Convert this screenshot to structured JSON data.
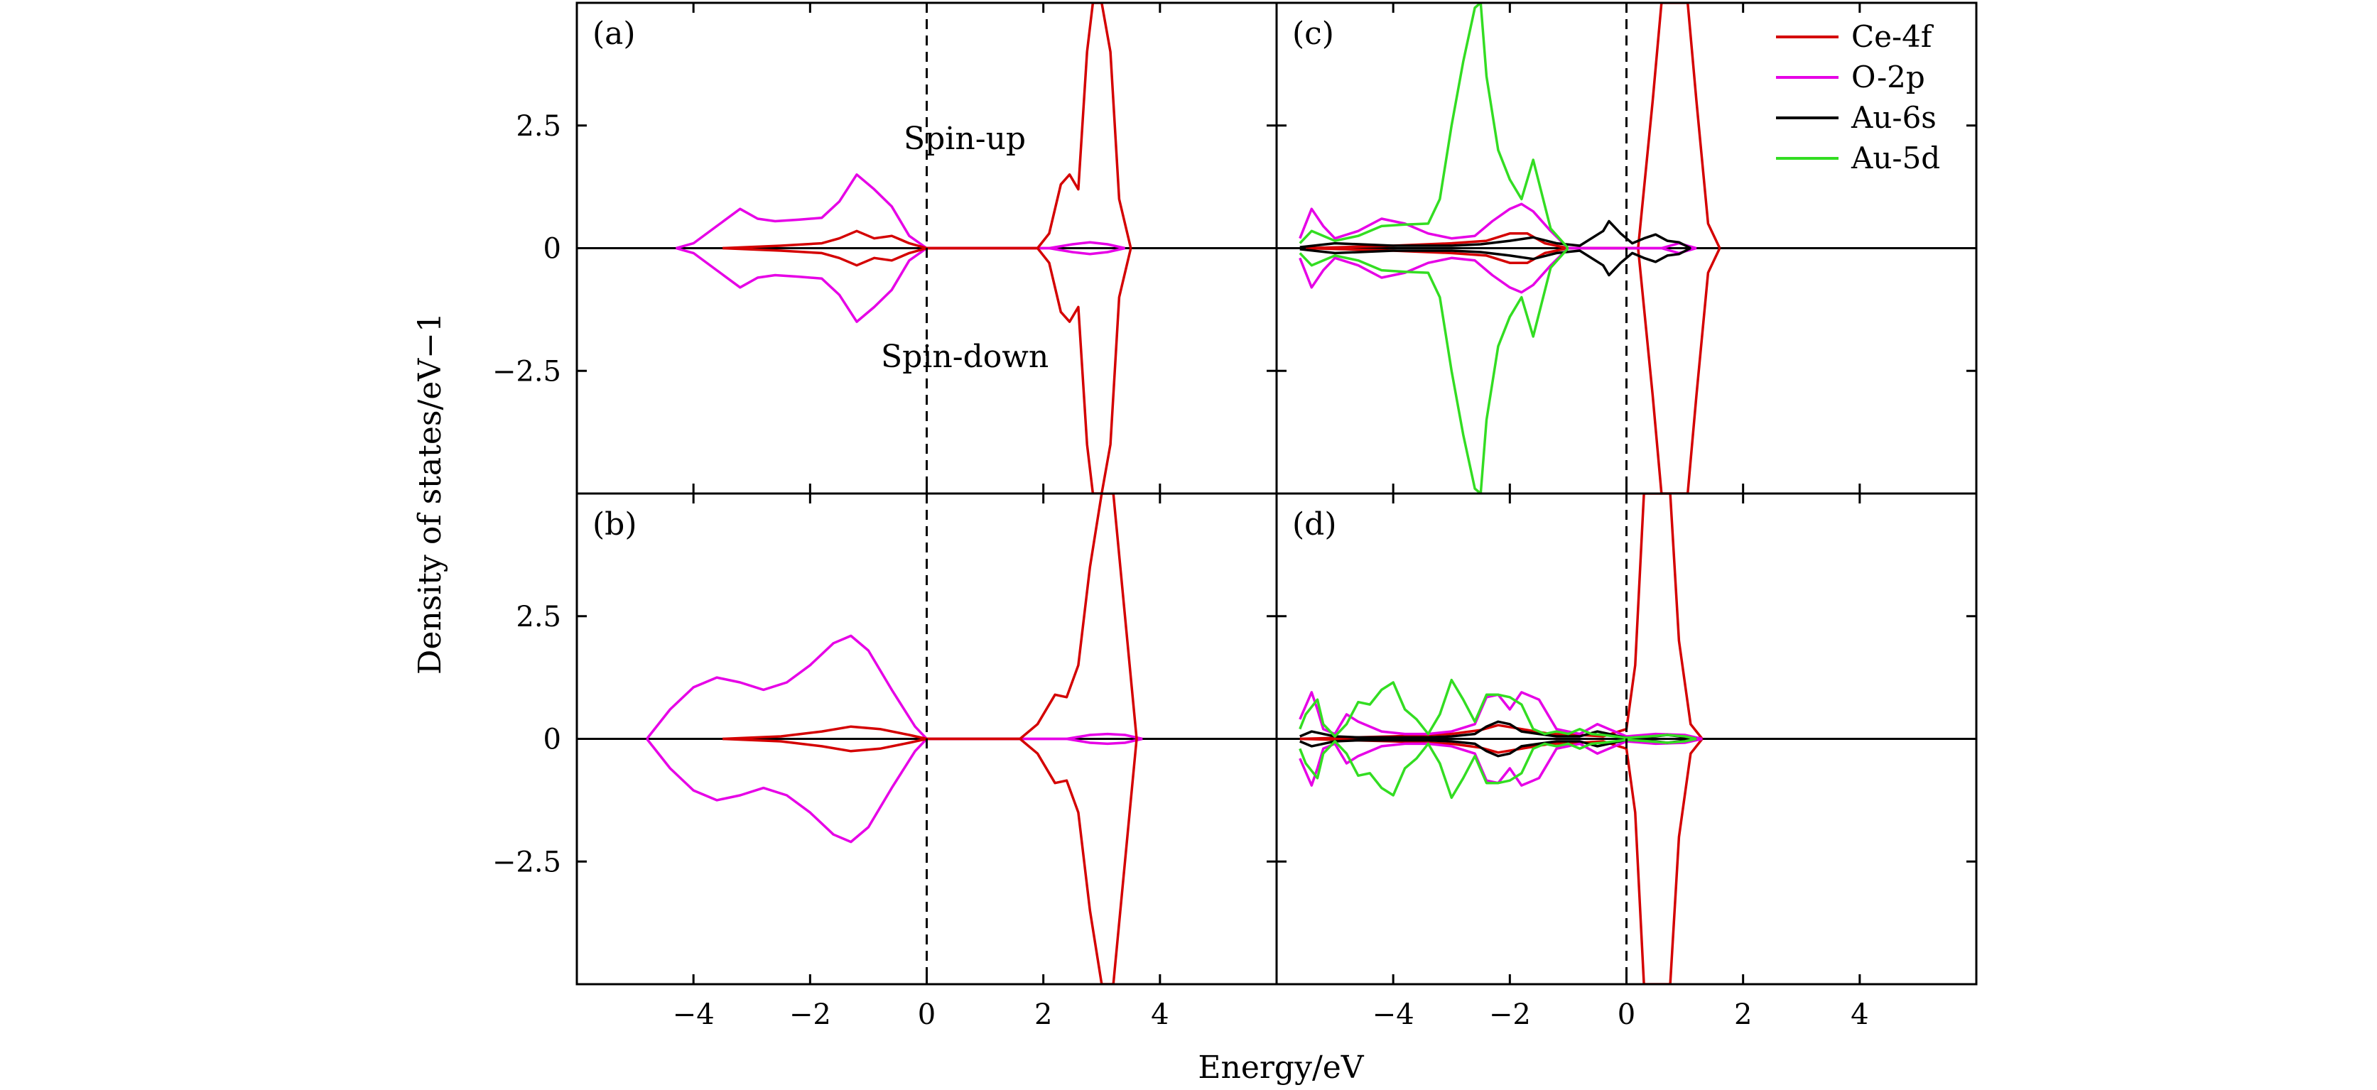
{
  "colors": {
    "Ce-4f": "#d40000",
    "O-2p": "#e600e6",
    "Au-6s": "#000000",
    "Au-5d": "#33dd22",
    "fermi": "#000000"
  },
  "figure": {
    "xlabel": "Energy/eV",
    "ylabel": "Density of states/eV−1",
    "xlim": [
      -6,
      6
    ],
    "ylim": [
      -5,
      5
    ],
    "xticks": [
      -4,
      -2,
      0,
      2,
      4
    ],
    "xtick_labels": [
      "−4",
      "−2",
      "0",
      "2",
      "4"
    ],
    "yticks": [
      2.5,
      0,
      -2.5
    ],
    "ytick_labels": [
      "2.5",
      "0",
      "−2.5"
    ],
    "legend": [
      "Ce-4f",
      "O-2p",
      "Au-6s",
      "Au-5d"
    ],
    "legend_position": "top-right of panel (c)"
  },
  "annotations": {
    "spin_up": "Spin-up",
    "spin_down": "Spin-down"
  },
  "chart_data": [
    {
      "type": "line",
      "panel": "(a)",
      "fermi_level": 0,
      "series": [
        {
          "name": "O-2p",
          "x": [
            -4.3,
            -4.0,
            -3.6,
            -3.2,
            -2.9,
            -2.6,
            -2.2,
            -1.8,
            -1.5,
            -1.2,
            -0.9,
            -0.6,
            -0.3,
            0.0,
            2.1,
            2.5,
            2.8,
            3.1,
            3.4
          ],
          "up": [
            0,
            0.1,
            0.45,
            0.8,
            0.6,
            0.55,
            0.58,
            0.62,
            0.95,
            1.5,
            1.2,
            0.85,
            0.25,
            0,
            0,
            0.08,
            0.12,
            0.08,
            0
          ]
        },
        {
          "name": "Ce-4f",
          "x": [
            -3.5,
            -2.5,
            -1.8,
            -1.5,
            -1.2,
            -0.9,
            -0.6,
            -0.3,
            0.0,
            1.9,
            2.1,
            2.3,
            2.45,
            2.6,
            2.75,
            2.85,
            3.0,
            3.15,
            3.3,
            3.5
          ],
          "up": [
            0,
            0.05,
            0.1,
            0.2,
            0.35,
            0.2,
            0.25,
            0.1,
            0,
            0,
            0.3,
            1.3,
            1.5,
            1.2,
            4.0,
            5.0,
            5.0,
            4.0,
            1.0,
            0
          ]
        }
      ]
    },
    {
      "type": "line",
      "panel": "(b)",
      "fermi_level": 0,
      "series": [
        {
          "name": "O-2p",
          "x": [
            -4.8,
            -4.4,
            -4.0,
            -3.6,
            -3.2,
            -2.8,
            -2.4,
            -2.0,
            -1.6,
            -1.3,
            -1.0,
            -0.6,
            -0.2,
            0.0,
            2.4,
            2.8,
            3.1,
            3.4,
            3.7
          ],
          "up": [
            0,
            0.6,
            1.05,
            1.25,
            1.15,
            1.0,
            1.15,
            1.5,
            1.95,
            2.1,
            1.8,
            1.0,
            0.25,
            0,
            0,
            0.08,
            0.1,
            0.08,
            0
          ]
        },
        {
          "name": "Ce-4f",
          "x": [
            -3.5,
            -2.5,
            -1.8,
            -1.3,
            -0.8,
            -0.3,
            0.0,
            1.6,
            1.9,
            2.2,
            2.4,
            2.6,
            2.8,
            3.0,
            3.2,
            3.4,
            3.6
          ],
          "up": [
            0,
            0.05,
            0.15,
            0.25,
            0.2,
            0.08,
            0,
            0,
            0.3,
            0.9,
            0.85,
            1.5,
            3.5,
            5.0,
            5.0,
            2.5,
            0
          ]
        }
      ]
    },
    {
      "type": "line",
      "panel": "(c)",
      "fermi_level": 0,
      "series": [
        {
          "name": "Ce-4f",
          "x": [
            -5.5,
            -4.0,
            -3.0,
            -2.4,
            -2.0,
            -1.7,
            -1.4,
            -1.0,
            0.2,
            0.45,
            0.6,
            0.75,
            0.9,
            1.05,
            1.2,
            1.4,
            1.6
          ],
          "up": [
            0,
            0.05,
            0.1,
            0.15,
            0.3,
            0.3,
            0.1,
            0,
            0,
            3.0,
            5.0,
            5.0,
            5.0,
            5.0,
            3.0,
            0.5,
            0
          ]
        },
        {
          "name": "O-2p",
          "x": [
            -5.6,
            -5.4,
            -5.2,
            -5.0,
            -4.6,
            -4.2,
            -3.8,
            -3.4,
            -3.0,
            -2.6,
            -2.3,
            -2.0,
            -1.8,
            -1.6,
            -1.3,
            -1.0,
            0.6,
            0.9,
            1.2
          ],
          "up": [
            0.2,
            0.8,
            0.45,
            0.2,
            0.35,
            0.6,
            0.5,
            0.3,
            0.2,
            0.25,
            0.55,
            0.8,
            0.9,
            0.75,
            0.35,
            0,
            0,
            0.1,
            0
          ]
        },
        {
          "name": "Au-6s",
          "x": [
            -5.6,
            -5.0,
            -4.0,
            -3.0,
            -2.5,
            -2.0,
            -1.6,
            -1.2,
            -0.8,
            -0.4,
            -0.3,
            -0.1,
            0.1,
            0.3,
            0.5,
            0.7,
            0.9,
            1.1
          ],
          "up": [
            0.02,
            0.1,
            0.05,
            0.05,
            0.08,
            0.15,
            0.22,
            0.1,
            0.05,
            0.35,
            0.55,
            0.3,
            0.1,
            0.2,
            0.28,
            0.15,
            0.12,
            0
          ]
        },
        {
          "name": "Au-5d",
          "x": [
            -5.6,
            -5.4,
            -5.0,
            -4.6,
            -4.2,
            -3.8,
            -3.4,
            -3.2,
            -3.0,
            -2.8,
            -2.6,
            -2.5,
            -2.4,
            -2.2,
            -2.0,
            -1.8,
            -1.6,
            -1.3,
            -1.0
          ],
          "up": [
            0.1,
            0.35,
            0.15,
            0.25,
            0.45,
            0.48,
            0.5,
            1.0,
            2.5,
            3.8,
            4.9,
            5.0,
            3.5,
            2.0,
            1.4,
            1.0,
            1.8,
            0.4,
            0
          ]
        }
      ]
    },
    {
      "type": "line",
      "panel": "(d)",
      "fermi_level": 0,
      "series": [
        {
          "name": "Ce-4f",
          "x": [
            -5.6,
            -4.0,
            -3.0,
            -2.5,
            -2.2,
            -1.8,
            -1.3,
            -0.8,
            -0.4,
            0.0,
            0.15,
            0.3,
            0.45,
            0.6,
            0.75,
            0.9,
            1.1,
            1.3
          ],
          "up": [
            0,
            0.05,
            0.1,
            0.18,
            0.28,
            0.2,
            0.1,
            0.08,
            0.05,
            0.2,
            1.5,
            5.0,
            5.0,
            5.0,
            5.0,
            2.0,
            0.3,
            0
          ]
        },
        {
          "name": "O-2p",
          "x": [
            -5.6,
            -5.4,
            -5.3,
            -5.2,
            -5.0,
            -4.8,
            -4.6,
            -4.2,
            -3.8,
            -3.4,
            -3.0,
            -2.6,
            -2.4,
            -2.2,
            -2.0,
            -1.8,
            -1.5,
            -1.2,
            -0.8,
            -0.5,
            -0.3,
            0.0,
            0.5,
            1.0,
            1.3
          ],
          "up": [
            0.4,
            0.95,
            0.6,
            0.2,
            0.1,
            0.5,
            0.35,
            0.15,
            0.1,
            0.1,
            0.15,
            0.3,
            0.85,
            0.9,
            0.6,
            0.95,
            0.8,
            0.2,
            0.1,
            0.3,
            0.2,
            0.05,
            0.1,
            0.08,
            0
          ]
        },
        {
          "name": "Au-6s",
          "x": [
            -5.6,
            -5.4,
            -5.2,
            -5.0,
            -4.6,
            -4.0,
            -3.4,
            -3.0,
            -2.6,
            -2.4,
            -2.2,
            -2.0,
            -1.8,
            -1.5,
            -1.2,
            -0.8,
            -0.5,
            -0.3,
            0.0,
            0.5,
            0.7,
            0.9,
            1.2
          ],
          "up": [
            0.05,
            0.15,
            0.1,
            0.05,
            0.03,
            0.03,
            0.03,
            0.05,
            0.1,
            0.25,
            0.35,
            0.3,
            0.15,
            0.1,
            0.05,
            0.05,
            0.15,
            0.1,
            0.02,
            0.05,
            0.08,
            0.05,
            0
          ]
        },
        {
          "name": "Au-5d",
          "x": [
            -5.6,
            -5.5,
            -5.3,
            -5.2,
            -5.0,
            -4.8,
            -4.6,
            -4.4,
            -4.2,
            -4.0,
            -3.8,
            -3.6,
            -3.4,
            -3.2,
            -3.0,
            -2.8,
            -2.6,
            -2.4,
            -2.2,
            -2.0,
            -1.8,
            -1.6,
            -1.4,
            -1.2,
            -1.0,
            -0.8,
            -0.6,
            -0.4,
            -0.2,
            0.0,
            0.4,
            0.7,
            1.0,
            1.2
          ],
          "up": [
            0.2,
            0.5,
            0.8,
            0.3,
            0.05,
            0.3,
            0.75,
            0.7,
            1.0,
            1.15,
            0.6,
            0.4,
            0.1,
            0.5,
            1.2,
            0.8,
            0.35,
            0.9,
            0.9,
            0.85,
            0.7,
            0.2,
            0.1,
            0.15,
            0.1,
            0.2,
            0.1,
            0.08,
            0.05,
            0.02,
            0.05,
            0.08,
            0.05,
            0
          ]
        }
      ]
    }
  ]
}
